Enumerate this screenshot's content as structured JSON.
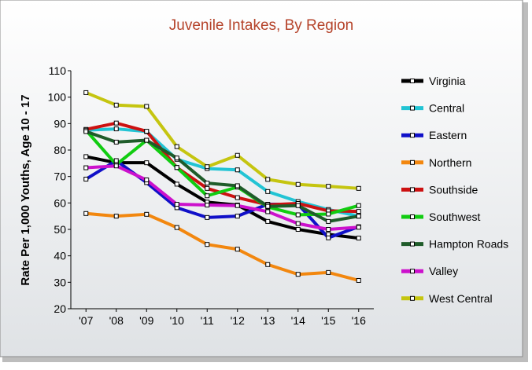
{
  "chart_data": {
    "type": "line",
    "title": "Juvenile Intakes, By Region",
    "xlabel": "",
    "ylabel": "Rate Per 1,000 Youths, Age 10 - 17",
    "ylim": [
      20,
      110
    ],
    "yticks": [
      "20",
      "30",
      "40",
      "50",
      "60",
      "70",
      "80",
      "90",
      "100",
      "110"
    ],
    "categories": [
      "'07",
      "'08",
      "'09",
      "'10",
      "'11",
      "'12",
      "'13",
      "'14",
      "'15",
      "'16"
    ],
    "legend_position": "right",
    "grid": false,
    "series": [
      {
        "name": "Virginia",
        "color": "#000000",
        "values": [
          77.5,
          75.2,
          75.2,
          67.1,
          60.3,
          59.2,
          53.0,
          50.0,
          48.1,
          46.7
        ]
      },
      {
        "name": "Central",
        "color": "#22c4d4",
        "values": [
          87.5,
          88.0,
          87.0,
          76.5,
          73.0,
          72.5,
          64.3,
          60.5,
          57.5,
          55.0
        ]
      },
      {
        "name": "Eastern",
        "color": "#1010c8",
        "values": [
          69.0,
          76.0,
          67.7,
          58.2,
          54.5,
          55.0,
          59.5,
          59.5,
          46.8,
          51.0
        ]
      },
      {
        "name": "Northern",
        "color": "#f2870f",
        "values": [
          56.0,
          55.0,
          55.7,
          50.7,
          44.3,
          42.5,
          36.7,
          33.0,
          33.7,
          30.7
        ]
      },
      {
        "name": "Southside",
        "color": "#cc1111",
        "values": [
          87.8,
          90.2,
          87.1,
          73.4,
          65.5,
          62.0,
          59.3,
          59.8,
          57.0,
          56.8
        ]
      },
      {
        "name": "Southwest",
        "color": "#11cc11",
        "values": [
          87.5,
          74.5,
          83.7,
          73.4,
          62.7,
          66.0,
          58.5,
          55.5,
          55.8,
          59.0
        ]
      },
      {
        "name": "Hampton Roads",
        "color": "#1f5c2a",
        "values": [
          87.0,
          83.0,
          83.7,
          77.0,
          67.5,
          66.5,
          58.7,
          59.0,
          53.0,
          55.0
        ]
      },
      {
        "name": "Valley",
        "color": "#cc11cc",
        "values": [
          73.3,
          74.0,
          68.7,
          59.5,
          59.2,
          59.0,
          56.7,
          52.2,
          50.0,
          50.8
        ]
      },
      {
        "name": "West Central",
        "color": "#c5c510",
        "values": [
          101.7,
          97.0,
          96.5,
          81.3,
          73.7,
          78.0,
          68.9,
          67.0,
          66.3,
          65.5
        ]
      }
    ]
  }
}
